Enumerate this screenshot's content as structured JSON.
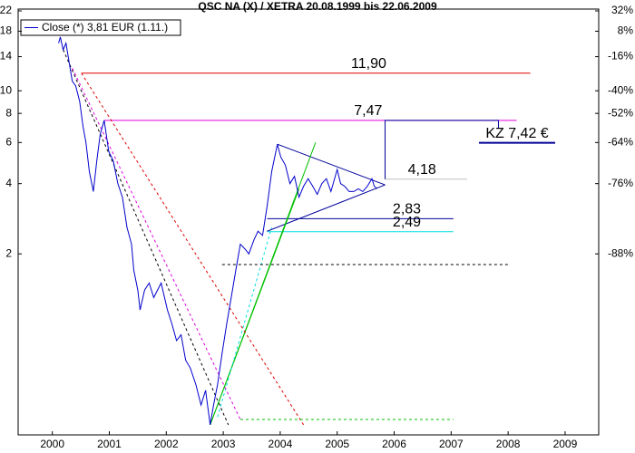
{
  "chart_data": {
    "type": "line",
    "title": "QSC NA (X) / XETRA 20.08.1999 bis 22.06.2009",
    "log_scale": true,
    "xlim": [
      1999.4,
      2009.59
    ],
    "xticks": [
      2000,
      2001,
      2002,
      2003,
      2004,
      2005,
      2006,
      2007,
      2008,
      2009
    ],
    "ylim": [
      0.36,
      22
    ],
    "yticks": [
      2,
      4,
      6,
      8,
      10,
      14,
      18,
      22
    ],
    "y2lim": [
      0.36,
      22
    ],
    "y2ticks": [
      {
        "value": 22,
        "label": "32%"
      },
      {
        "value": 18,
        "label": "8%"
      },
      {
        "value": 14,
        "label": "-16%"
      },
      {
        "value": 10,
        "label": "-40%"
      },
      {
        "value": 8,
        "label": "-52%"
      },
      {
        "value": 6,
        "label": "-64%"
      },
      {
        "value": 4,
        "label": "-76%"
      },
      {
        "value": 2,
        "label": "-88%"
      }
    ],
    "legend": "top-left",
    "series": [
      {
        "name": "Close (*) 3,81 EUR (1.11.)",
        "color": "#0000cc",
        "x": [
          2000.11,
          2000.14,
          2000.19,
          2000.24,
          2000.3,
          2000.35,
          2000.41,
          2000.48,
          2000.54,
          2000.59,
          2000.65,
          2000.72,
          2000.78,
          2000.84,
          2000.91,
          2000.99,
          2001.07,
          2001.15,
          2001.23,
          2001.31,
          2001.39,
          2001.43,
          2001.5,
          2001.54,
          2001.62,
          2001.7,
          2001.78,
          2001.91,
          2002.02,
          2002.1,
          2002.18,
          2002.26,
          2002.34,
          2002.42,
          2002.52,
          2002.61,
          2002.69,
          2002.77,
          2002.83,
          2002.9,
          2002.98,
          2003.06,
          2003.14,
          2003.22,
          2003.3,
          2003.38,
          2003.45,
          2003.54,
          2003.61,
          2003.69,
          2003.77,
          2003.85,
          2003.95,
          2004.01,
          2004.09,
          2004.17,
          2004.25,
          2004.33,
          2004.41,
          2004.49,
          2004.57,
          2004.65,
          2004.73,
          2004.81,
          2004.89,
          2005.0,
          2005.06,
          2005.13,
          2005.21,
          2005.29,
          2005.37,
          2005.45,
          2005.53,
          2005.61,
          2005.65,
          2005.7
        ],
        "values": [
          16,
          17,
          15,
          16,
          13,
          11,
          10.5,
          9,
          7,
          6,
          4.5,
          3.7,
          5,
          6.5,
          7.47,
          5.5,
          5,
          4,
          3.5,
          2.6,
          2.2,
          1.7,
          1.4,
          1.15,
          1.4,
          1.5,
          1.3,
          1.5,
          1.15,
          1.0,
          0.85,
          0.9,
          0.7,
          0.65,
          0.55,
          0.45,
          0.52,
          0.37,
          0.45,
          0.55,
          0.75,
          1.0,
          1.3,
          1.7,
          2.2,
          2.1,
          2.0,
          2.3,
          2.5,
          2.4,
          3.2,
          4.5,
          5.9,
          5.2,
          4.8,
          4.0,
          4.3,
          3.5,
          3.9,
          4.2,
          3.9,
          3.6,
          4.0,
          4.2,
          3.7,
          4.6,
          4.0,
          3.9,
          3.7,
          3.7,
          3.8,
          3.7,
          3.9,
          4.2,
          3.9,
          3.81
        ]
      }
    ],
    "hlines": [
      {
        "value": 11.9,
        "label": "11,90",
        "color": "#e00000",
        "x": [
          2000.51,
          2008.39
        ]
      },
      {
        "value": 7.47,
        "label": "7,47",
        "color": "#e000e0",
        "x": [
          2000.91,
          2008.15
        ]
      },
      {
        "value": 4.18,
        "label": "4,18",
        "color": "#c0c0c0",
        "x": [
          2005.84,
          2007.28
        ]
      },
      {
        "value": 2.83,
        "label": "2,83",
        "color": "#000099",
        "x": [
          2003.77,
          2007.04
        ]
      },
      {
        "value": 2.49,
        "label": "2,49",
        "color": "#00e0e0",
        "x": [
          2003.77,
          2007.04
        ]
      }
    ],
    "trendlines": [
      {
        "color": "#000099",
        "dash": false,
        "x": [
          2003.95,
          2005.84
        ],
        "y": [
          5.9,
          3.95
        ]
      },
      {
        "color": "#000099",
        "dash": false,
        "x": [
          2003.77,
          2005.84
        ],
        "y": [
          2.5,
          3.95
        ]
      },
      {
        "color": "#00c000",
        "dash": false,
        "x": [
          2002.77,
          2004.62
        ],
        "y": [
          0.37,
          6.0
        ]
      },
      {
        "color": "#00c000",
        "dash": false,
        "x": [
          2002.77,
          2004.33
        ],
        "y": [
          0.37,
          3.8
        ]
      },
      {
        "color": "#00e0e0",
        "dash": true,
        "x": [
          2002.9,
          2003.85
        ],
        "y": [
          0.4,
          2.6
        ]
      },
      {
        "color": "#000000",
        "dash": true,
        "x": [
          2000.19,
          2003.09
        ],
        "y": [
          15,
          0.37
        ]
      },
      {
        "color": "#e000e0",
        "dash": true,
        "x": [
          2000.35,
          2003.3
        ],
        "y": [
          12.5,
          0.39
        ]
      },
      {
        "color": "#e00000",
        "dash": true,
        "x": [
          2000.51,
          2004.41
        ],
        "y": [
          11.9,
          0.37
        ]
      },
      {
        "color": "#000000",
        "dash": true,
        "x": [
          2002.98,
          2008.0
        ],
        "y": [
          1.8,
          1.8
        ]
      },
      {
        "color": "#00c000",
        "dash": true,
        "x": [
          2003.3,
          2007.04
        ],
        "y": [
          0.39,
          0.39
        ]
      },
      {
        "color": "#000099",
        "dash": false,
        "x": [
          2005.84,
          2005.84,
          2007.83,
          2007.83
        ],
        "y": [
          4.18,
          7.47,
          7.47,
          6.9
        ]
      }
    ],
    "kz": {
      "value": 7.42,
      "label": "KZ 7,42 €",
      "color": "#000099"
    }
  }
}
